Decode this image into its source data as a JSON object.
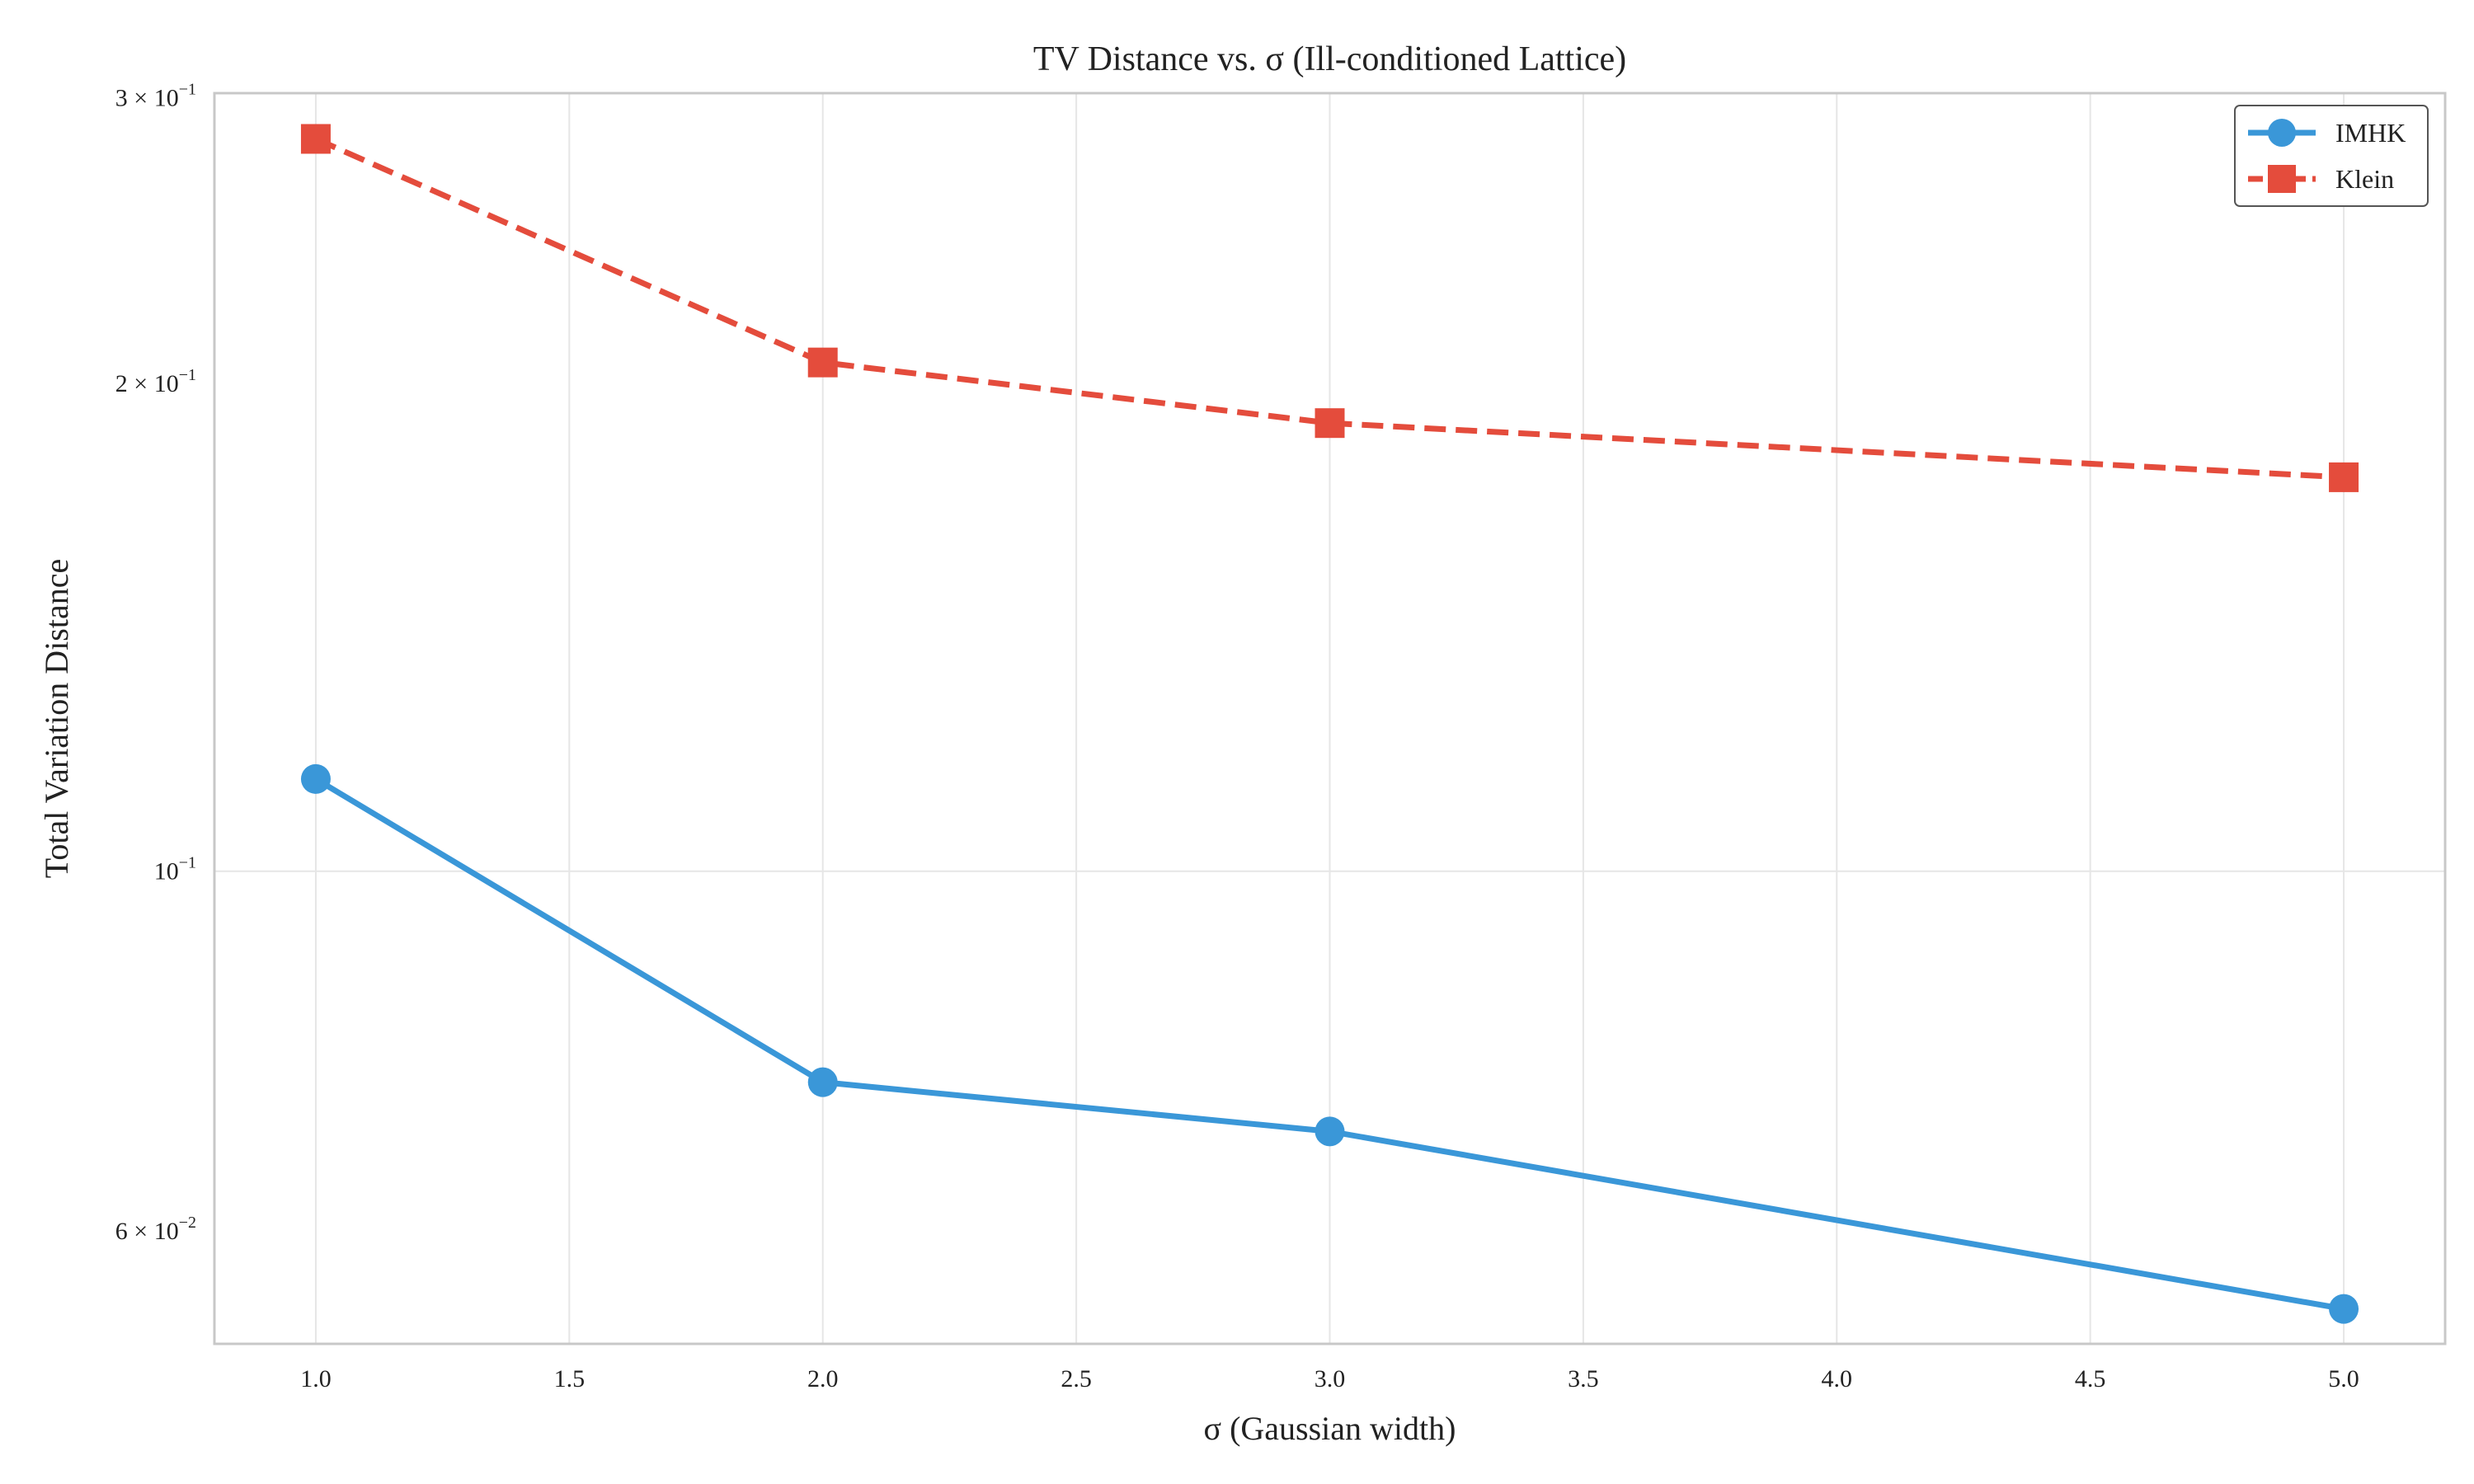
{
  "chart_data": {
    "type": "line",
    "title": "TV Distance vs. σ (Ill-conditioned Lattice)",
    "xlabel": "σ (Gaussian width)",
    "ylabel": "Total Variation Distance",
    "x": [
      1.0,
      2.0,
      3.0,
      5.0
    ],
    "xlim": [
      0.8,
      5.2
    ],
    "xticks": [
      1.0,
      1.5,
      2.0,
      2.5,
      3.0,
      3.5,
      4.0,
      4.5,
      5.0
    ],
    "xtick_labels": [
      "1.0",
      "1.5",
      "2.0",
      "2.5",
      "3.0",
      "3.5",
      "4.0",
      "4.5",
      "5.0"
    ],
    "yscale": "log",
    "ylim": [
      0.0511,
      0.302
    ],
    "yticks": [
      {
        "value": 0.3,
        "mantissa": "3 × 10",
        "exponent": "−1"
      },
      {
        "value": 0.2,
        "mantissa": "2 × 10",
        "exponent": "−1"
      },
      {
        "value": 0.1,
        "mantissa": "10",
        "exponent": "−1"
      },
      {
        "value": 0.06,
        "mantissa": "6 × 10",
        "exponent": "−2"
      }
    ],
    "grid": true,
    "legend_position": "top-right",
    "series": [
      {
        "name": "IMHK",
        "values": [
          0.114,
          0.0741,
          0.0691,
          0.0537
        ],
        "color": "#3a97d8",
        "marker": "circle",
        "linestyle": "solid"
      },
      {
        "name": "Klein",
        "values": [
          0.283,
          0.206,
          0.189,
          0.175
        ],
        "color": "#e44c3c",
        "marker": "square",
        "linestyle": "dashed"
      }
    ]
  }
}
